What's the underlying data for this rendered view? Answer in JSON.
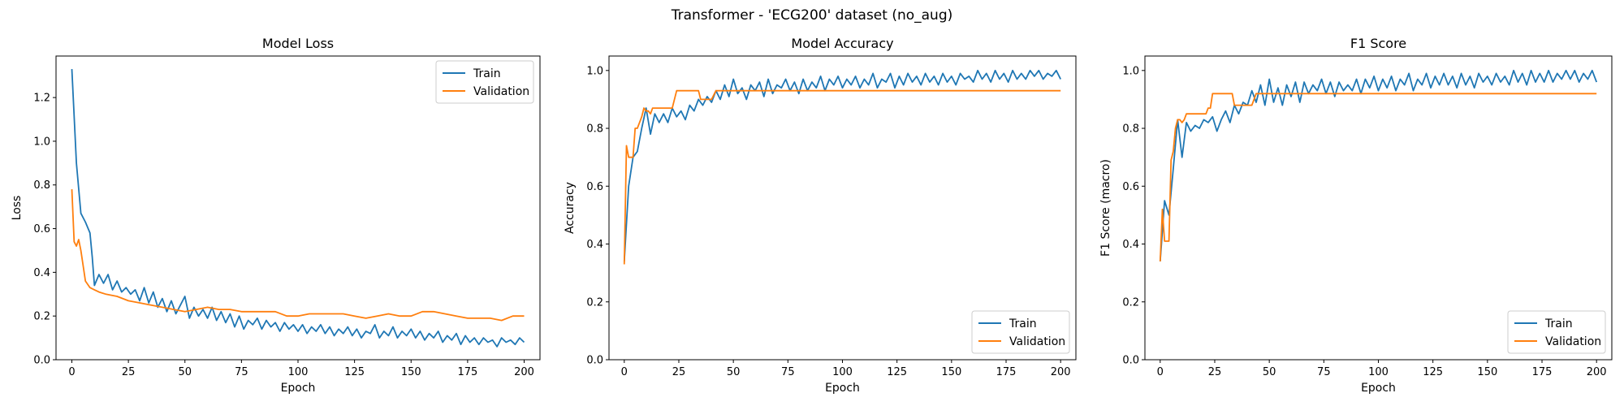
{
  "figure": {
    "suptitle": "Transformer - 'ECG200' dataset (no_aug)"
  },
  "colors": {
    "train": "#1f77b4",
    "validation": "#ff7f0e"
  },
  "chart_data": [
    {
      "type": "line",
      "title": "Model Loss",
      "xlabel": "Epoch",
      "ylabel": "Loss",
      "xlim": [
        -7,
        207
      ],
      "ylim": [
        0.0,
        1.39
      ],
      "xticks": [
        0,
        25,
        50,
        75,
        100,
        125,
        150,
        175,
        200
      ],
      "yticks": [
        0.0,
        0.2,
        0.4,
        0.6,
        0.8,
        1.0,
        1.2
      ],
      "yfmt": 1,
      "legend": "top-right",
      "series": [
        {
          "name": "Train",
          "x": [
            0,
            2,
            4,
            6,
            8,
            9,
            10,
            12,
            14,
            16,
            18,
            20,
            22,
            24,
            26,
            28,
            30,
            32,
            34,
            36,
            38,
            40,
            42,
            44,
            46,
            48,
            50,
            52,
            54,
            56,
            58,
            60,
            62,
            64,
            66,
            68,
            70,
            72,
            74,
            76,
            78,
            80,
            82,
            84,
            86,
            88,
            90,
            92,
            94,
            96,
            98,
            100,
            102,
            104,
            106,
            108,
            110,
            112,
            114,
            116,
            118,
            120,
            122,
            124,
            126,
            128,
            130,
            132,
            134,
            136,
            138,
            140,
            142,
            144,
            146,
            148,
            150,
            152,
            154,
            156,
            158,
            160,
            162,
            164,
            166,
            168,
            170,
            172,
            174,
            176,
            178,
            180,
            182,
            184,
            186,
            188,
            190,
            192,
            194,
            196,
            198,
            200
          ],
          "y": [
            1.33,
            0.9,
            0.67,
            0.63,
            0.58,
            0.47,
            0.34,
            0.39,
            0.35,
            0.39,
            0.32,
            0.36,
            0.31,
            0.33,
            0.3,
            0.32,
            0.27,
            0.33,
            0.26,
            0.31,
            0.24,
            0.28,
            0.22,
            0.27,
            0.21,
            0.25,
            0.29,
            0.19,
            0.24,
            0.2,
            0.23,
            0.19,
            0.24,
            0.18,
            0.22,
            0.17,
            0.21,
            0.15,
            0.2,
            0.14,
            0.18,
            0.16,
            0.19,
            0.14,
            0.18,
            0.15,
            0.17,
            0.13,
            0.17,
            0.14,
            0.16,
            0.13,
            0.16,
            0.12,
            0.15,
            0.13,
            0.16,
            0.12,
            0.15,
            0.11,
            0.14,
            0.12,
            0.15,
            0.11,
            0.14,
            0.1,
            0.13,
            0.12,
            0.16,
            0.1,
            0.13,
            0.11,
            0.15,
            0.1,
            0.13,
            0.11,
            0.14,
            0.1,
            0.13,
            0.09,
            0.12,
            0.1,
            0.13,
            0.08,
            0.11,
            0.09,
            0.12,
            0.07,
            0.11,
            0.08,
            0.1,
            0.07,
            0.1,
            0.08,
            0.09,
            0.06,
            0.1,
            0.08,
            0.09,
            0.07,
            0.1,
            0.08
          ]
        },
        {
          "name": "Validation",
          "x": [
            0,
            1,
            2,
            3,
            4,
            5,
            6,
            8,
            10,
            12,
            15,
            20,
            25,
            30,
            35,
            40,
            45,
            50,
            55,
            60,
            65,
            70,
            75,
            80,
            85,
            90,
            95,
            100,
            105,
            110,
            115,
            120,
            125,
            130,
            135,
            140,
            145,
            150,
            155,
            160,
            165,
            170,
            175,
            180,
            185,
            190,
            195,
            200
          ],
          "y": [
            0.78,
            0.54,
            0.52,
            0.55,
            0.5,
            0.43,
            0.36,
            0.33,
            0.32,
            0.31,
            0.3,
            0.29,
            0.27,
            0.26,
            0.25,
            0.24,
            0.23,
            0.22,
            0.23,
            0.24,
            0.23,
            0.23,
            0.22,
            0.22,
            0.22,
            0.22,
            0.2,
            0.2,
            0.21,
            0.21,
            0.21,
            0.21,
            0.2,
            0.19,
            0.2,
            0.21,
            0.2,
            0.2,
            0.22,
            0.22,
            0.21,
            0.2,
            0.19,
            0.19,
            0.19,
            0.18,
            0.2,
            0.2
          ]
        }
      ]
    },
    {
      "type": "line",
      "title": "Model Accuracy",
      "xlabel": "Epoch",
      "ylabel": "Accuracy",
      "xlim": [
        -7,
        207
      ],
      "ylim": [
        0.0,
        1.05
      ],
      "xticks": [
        0,
        25,
        50,
        75,
        100,
        125,
        150,
        175,
        200
      ],
      "yticks": [
        0.0,
        0.2,
        0.4,
        0.6,
        0.8,
        1.0
      ],
      "yfmt": 1,
      "legend": "bottom-right",
      "series": [
        {
          "name": "Train",
          "x": [
            0,
            2,
            4,
            6,
            8,
            10,
            12,
            14,
            16,
            18,
            20,
            22,
            24,
            26,
            28,
            30,
            32,
            34,
            36,
            38,
            40,
            42,
            44,
            46,
            48,
            50,
            52,
            54,
            56,
            58,
            60,
            62,
            64,
            66,
            68,
            70,
            72,
            74,
            76,
            78,
            80,
            82,
            84,
            86,
            88,
            90,
            92,
            94,
            96,
            98,
            100,
            102,
            104,
            106,
            108,
            110,
            112,
            114,
            116,
            118,
            120,
            122,
            124,
            126,
            128,
            130,
            132,
            134,
            136,
            138,
            140,
            142,
            144,
            146,
            148,
            150,
            152,
            154,
            156,
            158,
            160,
            162,
            164,
            166,
            168,
            170,
            172,
            174,
            176,
            178,
            180,
            182,
            184,
            186,
            188,
            190,
            192,
            194,
            196,
            198,
            200
          ],
          "y": [
            0.34,
            0.6,
            0.7,
            0.72,
            0.8,
            0.87,
            0.78,
            0.85,
            0.82,
            0.85,
            0.82,
            0.87,
            0.84,
            0.86,
            0.83,
            0.88,
            0.86,
            0.9,
            0.88,
            0.91,
            0.89,
            0.93,
            0.9,
            0.95,
            0.91,
            0.97,
            0.92,
            0.94,
            0.9,
            0.95,
            0.93,
            0.96,
            0.91,
            0.97,
            0.92,
            0.95,
            0.94,
            0.97,
            0.93,
            0.96,
            0.92,
            0.97,
            0.93,
            0.96,
            0.94,
            0.98,
            0.93,
            0.97,
            0.95,
            0.98,
            0.94,
            0.97,
            0.95,
            0.98,
            0.94,
            0.97,
            0.95,
            0.99,
            0.94,
            0.97,
            0.96,
            0.99,
            0.94,
            0.98,
            0.95,
            0.99,
            0.96,
            0.98,
            0.95,
            0.99,
            0.96,
            0.98,
            0.95,
            0.99,
            0.96,
            0.98,
            0.95,
            0.99,
            0.97,
            0.98,
            0.96,
            1.0,
            0.97,
            0.99,
            0.96,
            1.0,
            0.97,
            0.99,
            0.96,
            1.0,
            0.97,
            0.99,
            0.97,
            1.0,
            0.98,
            1.0,
            0.97,
            0.99,
            0.98,
            1.0,
            0.97
          ]
        },
        {
          "name": "Validation",
          "x": [
            0,
            1,
            2,
            3,
            4,
            5,
            6,
            7,
            8,
            9,
            10,
            11,
            12,
            13,
            14,
            15,
            17,
            19,
            21,
            22,
            24,
            25,
            26,
            28,
            30,
            32,
            34,
            35,
            36,
            38,
            40,
            42,
            44,
            46,
            48,
            50,
            55,
            60,
            65,
            70,
            75,
            80,
            85,
            90,
            95,
            100,
            110,
            120,
            130,
            140,
            150,
            160,
            170,
            180,
            190,
            200
          ],
          "y": [
            0.33,
            0.74,
            0.7,
            0.7,
            0.7,
            0.8,
            0.8,
            0.82,
            0.84,
            0.87,
            0.86,
            0.86,
            0.85,
            0.87,
            0.87,
            0.87,
            0.87,
            0.87,
            0.87,
            0.87,
            0.93,
            0.93,
            0.93,
            0.93,
            0.93,
            0.93,
            0.93,
            0.9,
            0.9,
            0.9,
            0.9,
            0.93,
            0.93,
            0.93,
            0.93,
            0.93,
            0.93,
            0.93,
            0.93,
            0.93,
            0.93,
            0.93,
            0.93,
            0.93,
            0.93,
            0.93,
            0.93,
            0.93,
            0.93,
            0.93,
            0.93,
            0.93,
            0.93,
            0.93,
            0.93,
            0.93
          ]
        }
      ]
    },
    {
      "type": "line",
      "title": "F1 Score",
      "xlabel": "Epoch",
      "ylabel": "F1 Score (macro)",
      "xlim": [
        -7,
        207
      ],
      "ylim": [
        0.0,
        1.05
      ],
      "xticks": [
        0,
        25,
        50,
        75,
        100,
        125,
        150,
        175,
        200
      ],
      "yticks": [
        0.0,
        0.2,
        0.4,
        0.6,
        0.8,
        1.0
      ],
      "yfmt": 1,
      "legend": "bottom-right",
      "series": [
        {
          "name": "Train",
          "x": [
            0,
            2,
            4,
            6,
            8,
            10,
            12,
            14,
            16,
            18,
            20,
            22,
            24,
            26,
            28,
            30,
            32,
            34,
            36,
            38,
            40,
            42,
            44,
            46,
            48,
            50,
            52,
            54,
            56,
            58,
            60,
            62,
            64,
            66,
            68,
            70,
            72,
            74,
            76,
            78,
            80,
            82,
            84,
            86,
            88,
            90,
            92,
            94,
            96,
            98,
            100,
            102,
            104,
            106,
            108,
            110,
            112,
            114,
            116,
            118,
            120,
            122,
            124,
            126,
            128,
            130,
            132,
            134,
            136,
            138,
            140,
            142,
            144,
            146,
            148,
            150,
            152,
            154,
            156,
            158,
            160,
            162,
            164,
            166,
            168,
            170,
            172,
            174,
            176,
            178,
            180,
            182,
            184,
            186,
            188,
            190,
            192,
            194,
            196,
            198,
            200
          ],
          "y": [
            0.34,
            0.55,
            0.5,
            0.66,
            0.83,
            0.7,
            0.82,
            0.79,
            0.81,
            0.8,
            0.83,
            0.82,
            0.84,
            0.79,
            0.83,
            0.86,
            0.82,
            0.88,
            0.85,
            0.89,
            0.88,
            0.93,
            0.89,
            0.95,
            0.88,
            0.97,
            0.89,
            0.94,
            0.88,
            0.95,
            0.91,
            0.96,
            0.89,
            0.96,
            0.92,
            0.95,
            0.93,
            0.97,
            0.92,
            0.96,
            0.91,
            0.96,
            0.93,
            0.95,
            0.93,
            0.97,
            0.92,
            0.97,
            0.94,
            0.98,
            0.93,
            0.97,
            0.94,
            0.98,
            0.93,
            0.97,
            0.95,
            0.99,
            0.93,
            0.97,
            0.95,
            0.99,
            0.94,
            0.98,
            0.95,
            0.99,
            0.95,
            0.98,
            0.94,
            0.99,
            0.95,
            0.98,
            0.94,
            0.99,
            0.96,
            0.98,
            0.95,
            0.99,
            0.96,
            0.98,
            0.95,
            1.0,
            0.96,
            0.99,
            0.95,
            1.0,
            0.96,
            0.99,
            0.96,
            1.0,
            0.96,
            0.99,
            0.97,
            1.0,
            0.97,
            1.0,
            0.96,
            0.99,
            0.97,
            1.0,
            0.96
          ]
        },
        {
          "name": "Validation",
          "x": [
            0,
            1,
            2,
            3,
            4,
            5,
            6,
            7,
            8,
            9,
            10,
            11,
            12,
            13,
            14,
            15,
            17,
            19,
            21,
            22,
            23,
            24,
            26,
            28,
            30,
            32,
            33,
            34,
            36,
            38,
            40,
            42,
            44,
            46,
            48,
            50,
            55,
            60,
            65,
            70,
            75,
            80,
            85,
            90,
            95,
            100,
            110,
            120,
            130,
            140,
            150,
            160,
            170,
            180,
            190,
            200
          ],
          "y": [
            0.34,
            0.52,
            0.41,
            0.41,
            0.41,
            0.69,
            0.72,
            0.8,
            0.83,
            0.83,
            0.82,
            0.83,
            0.85,
            0.85,
            0.85,
            0.85,
            0.85,
            0.85,
            0.85,
            0.87,
            0.87,
            0.92,
            0.92,
            0.92,
            0.92,
            0.92,
            0.92,
            0.88,
            0.88,
            0.88,
            0.88,
            0.88,
            0.92,
            0.92,
            0.92,
            0.92,
            0.92,
            0.92,
            0.92,
            0.92,
            0.92,
            0.92,
            0.92,
            0.92,
            0.92,
            0.92,
            0.92,
            0.92,
            0.92,
            0.92,
            0.92,
            0.92,
            0.92,
            0.92,
            0.92,
            0.92
          ]
        }
      ]
    }
  ]
}
